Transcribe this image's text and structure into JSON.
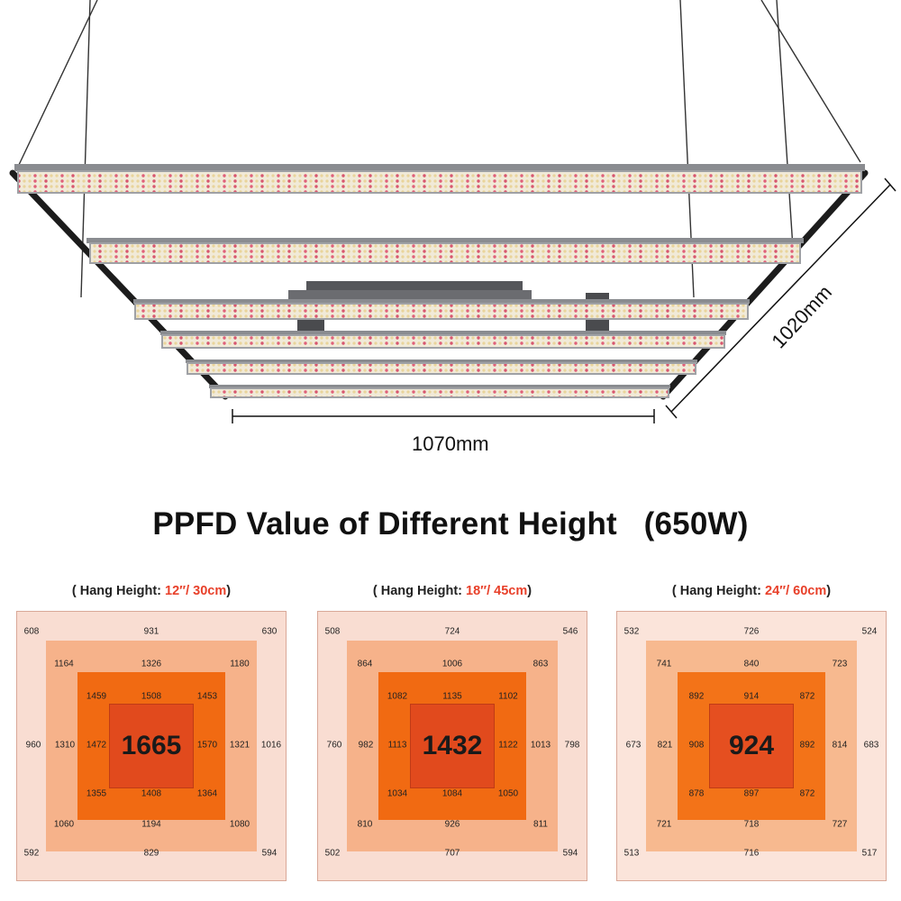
{
  "product": {
    "width_label": "1070mm",
    "depth_label": "1020mm"
  },
  "title": "PPFD Value of Different Height   (650W)",
  "panels": [
    {
      "caption_prefix": "( Hang Height: ",
      "height": "12″/ 30cm",
      "caption_suffix": ")",
      "center": "1665",
      "values": {
        "outer": {
          "tl": "608",
          "t": "931",
          "tr": "630",
          "l": "960",
          "r": "1016",
          "bl": "592",
          "b": "829",
          "br": "594"
        },
        "ring2": {
          "tl": "1164",
          "t": "1326",
          "tr": "1180",
          "l": "1310",
          "r": "1321",
          "bl": "1060",
          "b": "1194",
          "br": "1080"
        },
        "ring3": {
          "tl": "1459",
          "t": "1508",
          "tr": "1453",
          "l": "1472",
          "r": "1570",
          "bl": "1355",
          "b": "1408",
          "br": "1364"
        }
      }
    },
    {
      "caption_prefix": "( Hang Height: ",
      "height": "18″/ 45cm",
      "caption_suffix": ")",
      "center": "1432",
      "values": {
        "outer": {
          "tl": "508",
          "t": "724",
          "tr": "546",
          "l": "760",
          "r": "798",
          "bl": "502",
          "b": "707",
          "br": "594"
        },
        "ring2": {
          "tl": "864",
          "t": "1006",
          "tr": "863",
          "l": "982",
          "r": "1013",
          "bl": "810",
          "b": "926",
          "br": "811"
        },
        "ring3": {
          "tl": "1082",
          "t": "1135",
          "tr": "1102",
          "l": "1113",
          "r": "1122",
          "bl": "1034",
          "b": "1084",
          "br": "1050"
        }
      }
    },
    {
      "caption_prefix": "( Hang Height: ",
      "height": "24″/ 60cm",
      "caption_suffix": ")",
      "center": "924",
      "values": {
        "outer": {
          "tl": "532",
          "t": "726",
          "tr": "524",
          "l": "673",
          "r": "683",
          "bl": "513",
          "b": "716",
          "br": "517"
        },
        "ring2": {
          "tl": "741",
          "t": "840",
          "tr": "723",
          "l": "821",
          "r": "814",
          "bl": "721",
          "b": "718",
          "br": "727"
        },
        "ring3": {
          "tl": "892",
          "t": "914",
          "tr": "872",
          "l": "908",
          "r": "892",
          "bl": "878",
          "b": "897",
          "br": "872"
        }
      }
    }
  ],
  "colors": {
    "outer": "#f9ddd2",
    "ring2": "#f6b28a",
    "ring3": "#f16a12",
    "center": "#e14a1d",
    "height_highlight": "#e8402a"
  }
}
